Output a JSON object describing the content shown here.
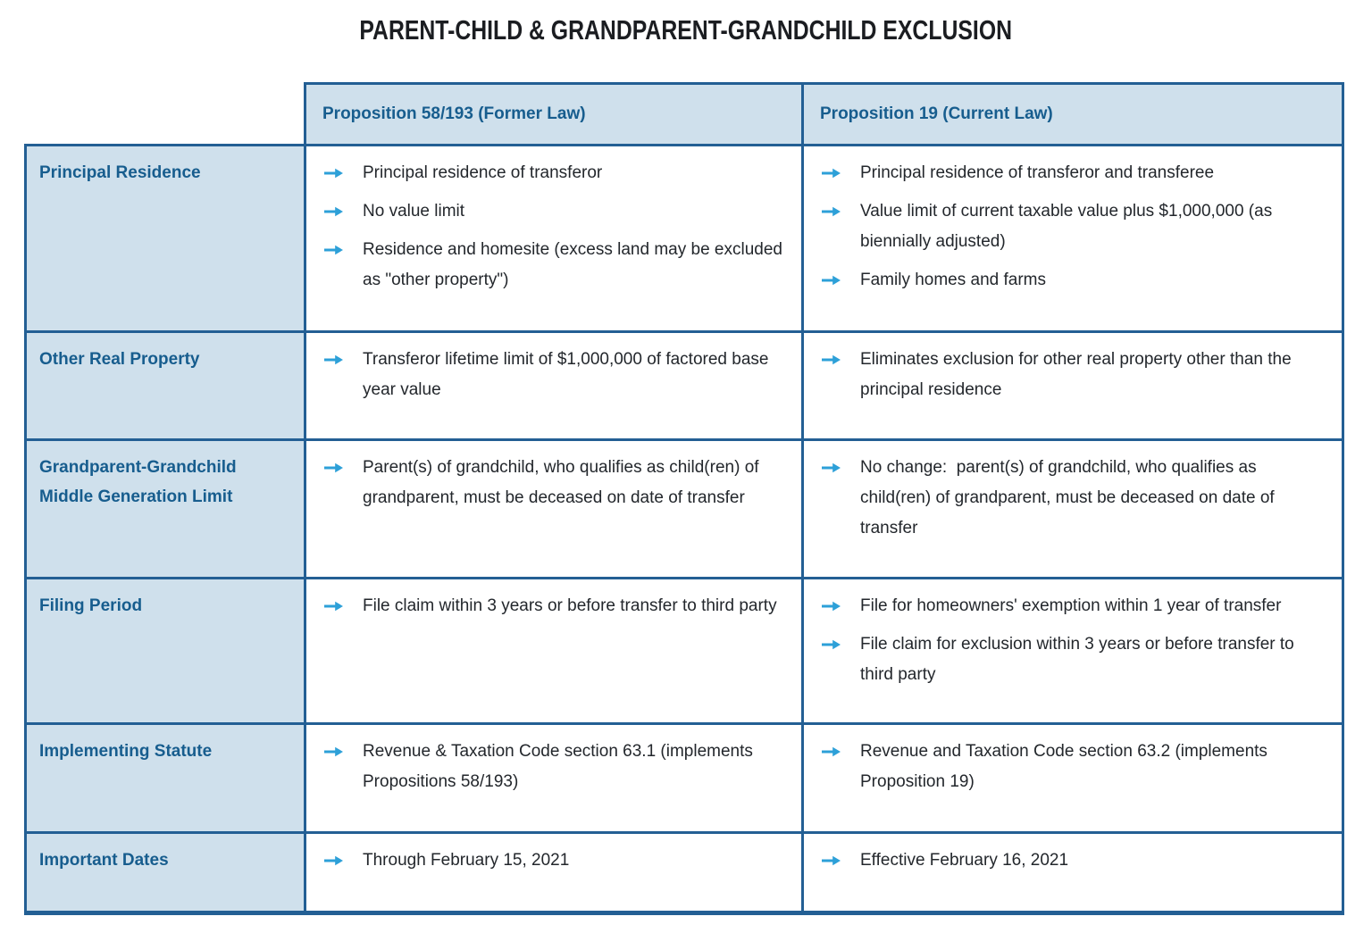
{
  "title": "PARENT-CHILD & GRANDPARENT-GRANDCHILD EXCLUSION",
  "colors": {
    "cell_fill": "#cfe0ec",
    "border": "#235f94",
    "heading_text": "#175d8e",
    "arrow": "#2da0d8",
    "body_text": "#23272c"
  },
  "icons": {
    "bullet": "arrow-right-icon"
  },
  "table": {
    "column_headers": [
      "Proposition 58/193 (Former Law)",
      "Proposition 19 (Current Law)"
    ],
    "rows": [
      {
        "label": "Principal Residence",
        "former": [
          "Principal residence of transferor",
          "No value limit",
          "Residence and homesite (excess land may be excluded as \"other property\")"
        ],
        "current": [
          "Principal residence of transferor and transferee",
          "Value limit of current taxable value plus $1,000,000 (as biennially adjusted)",
          "Family homes and farms"
        ]
      },
      {
        "label": "Other Real Property",
        "former": [
          "Transferor lifetime limit of $1,000,000 of factored base year value"
        ],
        "current": [
          "Eliminates exclusion for other real property other than the principal residence"
        ]
      },
      {
        "label": "Grandparent-Grandchild Middle Generation Limit",
        "former": [
          "Parent(s) of grandchild, who qualifies as child(ren) of grandparent, must be deceased on date of transfer"
        ],
        "current": [
          "No change:  parent(s) of grandchild, who qualifies as child(ren) of grandparent, must be deceased on date of transfer"
        ]
      },
      {
        "label": "Filing Period",
        "former": [
          "File claim within 3 years or before transfer to third party"
        ],
        "current": [
          "File for homeowners' exemption within 1 year of transfer",
          "File claim for exclusion within 3 years or before transfer to third party"
        ]
      },
      {
        "label": "Implementing Statute",
        "former": [
          "Revenue & Taxation Code section 63.1 (implements Propositions 58/193)"
        ],
        "current": [
          "Revenue and Taxation Code section 63.2 (implements Proposition 19)"
        ]
      },
      {
        "label": "Important Dates",
        "former": [
          "Through February 15, 2021"
        ],
        "current": [
          "Effective February 16, 2021"
        ]
      }
    ]
  }
}
